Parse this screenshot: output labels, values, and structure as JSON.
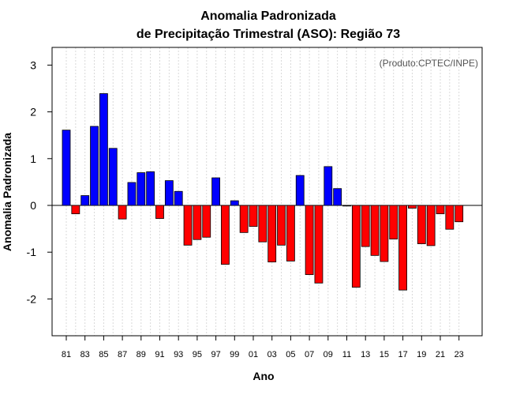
{
  "chart_data": {
    "type": "bar",
    "title": "Anomalia Padronizada",
    "subtitle": "de Precipitação Trimestral (ASO): Região 73",
    "xlabel": "Ano",
    "ylabel": "Anomalia Padronizada",
    "annotation": "(Produto:CPTEC/INPE)",
    "ylim": [
      -2.8,
      3.4
    ],
    "yticks": [
      -2,
      -1,
      0,
      1,
      2,
      3
    ],
    "tick_labels": [
      "81",
      "83",
      "85",
      "87",
      "89",
      "91",
      "93",
      "95",
      "97",
      "99",
      "01",
      "03",
      "05",
      "07",
      "09",
      "11",
      "13",
      "15",
      "17",
      "19",
      "21",
      "23"
    ],
    "categories": [
      "81",
      "82",
      "83",
      "84",
      "85",
      "86",
      "87",
      "88",
      "89",
      "90",
      "91",
      "92",
      "93",
      "94",
      "95",
      "96",
      "97",
      "98",
      "99",
      "00",
      "01",
      "02",
      "03",
      "04",
      "05",
      "06",
      "07",
      "08",
      "09",
      "10",
      "11",
      "12",
      "13",
      "14",
      "15",
      "16",
      "17",
      "18",
      "19",
      "20",
      "21",
      "22",
      "23"
    ],
    "values": [
      1.61,
      -0.18,
      0.21,
      1.69,
      2.39,
      1.22,
      -0.29,
      0.49,
      0.7,
      0.72,
      -0.28,
      0.53,
      0.3,
      -0.85,
      -0.73,
      -0.68,
      0.59,
      -1.26,
      0.1,
      -0.58,
      -0.45,
      -0.78,
      -1.21,
      -0.85,
      -1.19,
      0.64,
      -1.48,
      -1.66,
      0.83,
      0.36,
      -0.01,
      -1.75,
      -0.88,
      -1.07,
      -1.2,
      -0.72,
      -1.81,
      -0.06,
      -0.82,
      -0.86,
      -0.18,
      -0.51,
      -0.35
    ],
    "positive_color": "#0000ff",
    "negative_color": "#ff0000",
    "grid": true
  }
}
